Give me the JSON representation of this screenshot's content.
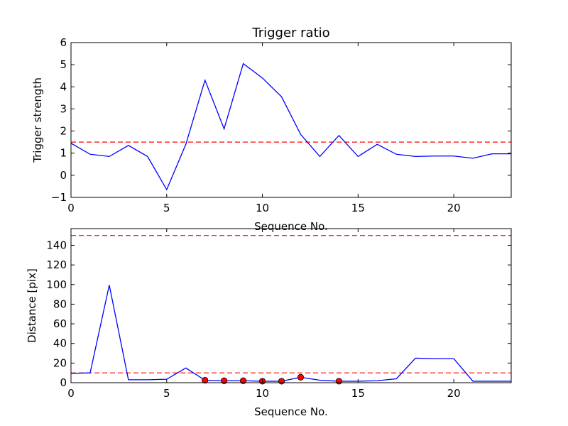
{
  "chart_data": [
    {
      "type": "line",
      "title": "Trigger ratio",
      "xlabel": "Sequence No.",
      "ylabel": "Trigger strength",
      "xlim": [
        0,
        23
      ],
      "ylim": [
        -1,
        6
      ],
      "xticks": [
        0,
        5,
        10,
        15,
        20
      ],
      "yticks": [
        -1,
        0,
        1,
        2,
        3,
        4,
        5,
        6
      ],
      "grid": false,
      "series": [
        {
          "x": [
            0,
            1,
            2,
            3,
            4,
            5,
            6,
            7,
            8,
            9,
            10,
            11,
            12,
            13,
            14,
            15,
            16,
            17,
            18,
            19,
            20,
            21,
            22,
            23
          ],
          "values": [
            1.45,
            0.95,
            0.85,
            1.35,
            0.85,
            -0.65,
            1.4,
            4.3,
            2.1,
            5.05,
            4.4,
            3.55,
            1.85,
            0.85,
            1.8,
            0.85,
            1.4,
            0.95,
            0.85,
            0.87,
            0.87,
            0.77,
            0.97,
            0.97
          ],
          "color": "#0000ff",
          "style": "solid"
        }
      ],
      "hlines": [
        {
          "y": 1.5,
          "color": "#ff0000",
          "style": "dashed"
        }
      ]
    },
    {
      "type": "line",
      "title": "",
      "xlabel": "Sequence No.",
      "ylabel": "Distance [pix]",
      "xlim": [
        0,
        23
      ],
      "ylim": [
        0,
        157
      ],
      "xticks": [
        0,
        5,
        10,
        15,
        20
      ],
      "yticks": [
        0,
        20,
        40,
        60,
        80,
        100,
        120,
        140
      ],
      "grid": false,
      "series": [
        {
          "x": [
            0,
            1,
            2,
            3,
            4,
            5,
            6,
            7,
            8,
            9,
            10,
            11,
            12,
            13,
            14,
            15,
            16,
            17,
            18,
            19,
            20,
            21,
            22,
            23
          ],
          "values": [
            9.5,
            10,
            99.5,
            3,
            3,
            3.5,
            15,
            2.5,
            2,
            2,
            1.5,
            1.5,
            5.5,
            2.5,
            1.5,
            1.5,
            2,
            4,
            25,
            24.5,
            24.5,
            1.5,
            1.5,
            1.5
          ],
          "color": "#0000ff",
          "style": "solid"
        }
      ],
      "markers": {
        "x": [
          7,
          8,
          9,
          10,
          11,
          12,
          14
        ],
        "values": [
          2.5,
          2,
          2,
          1.5,
          1.5,
          5.5,
          1.5
        ],
        "color": "#ff0000"
      },
      "hlines": [
        {
          "y": 150,
          "color": "#ff0000",
          "style": "dashed"
        },
        {
          "y": 10,
          "color": "#ff0000",
          "style": "dashed"
        }
      ]
    }
  ]
}
